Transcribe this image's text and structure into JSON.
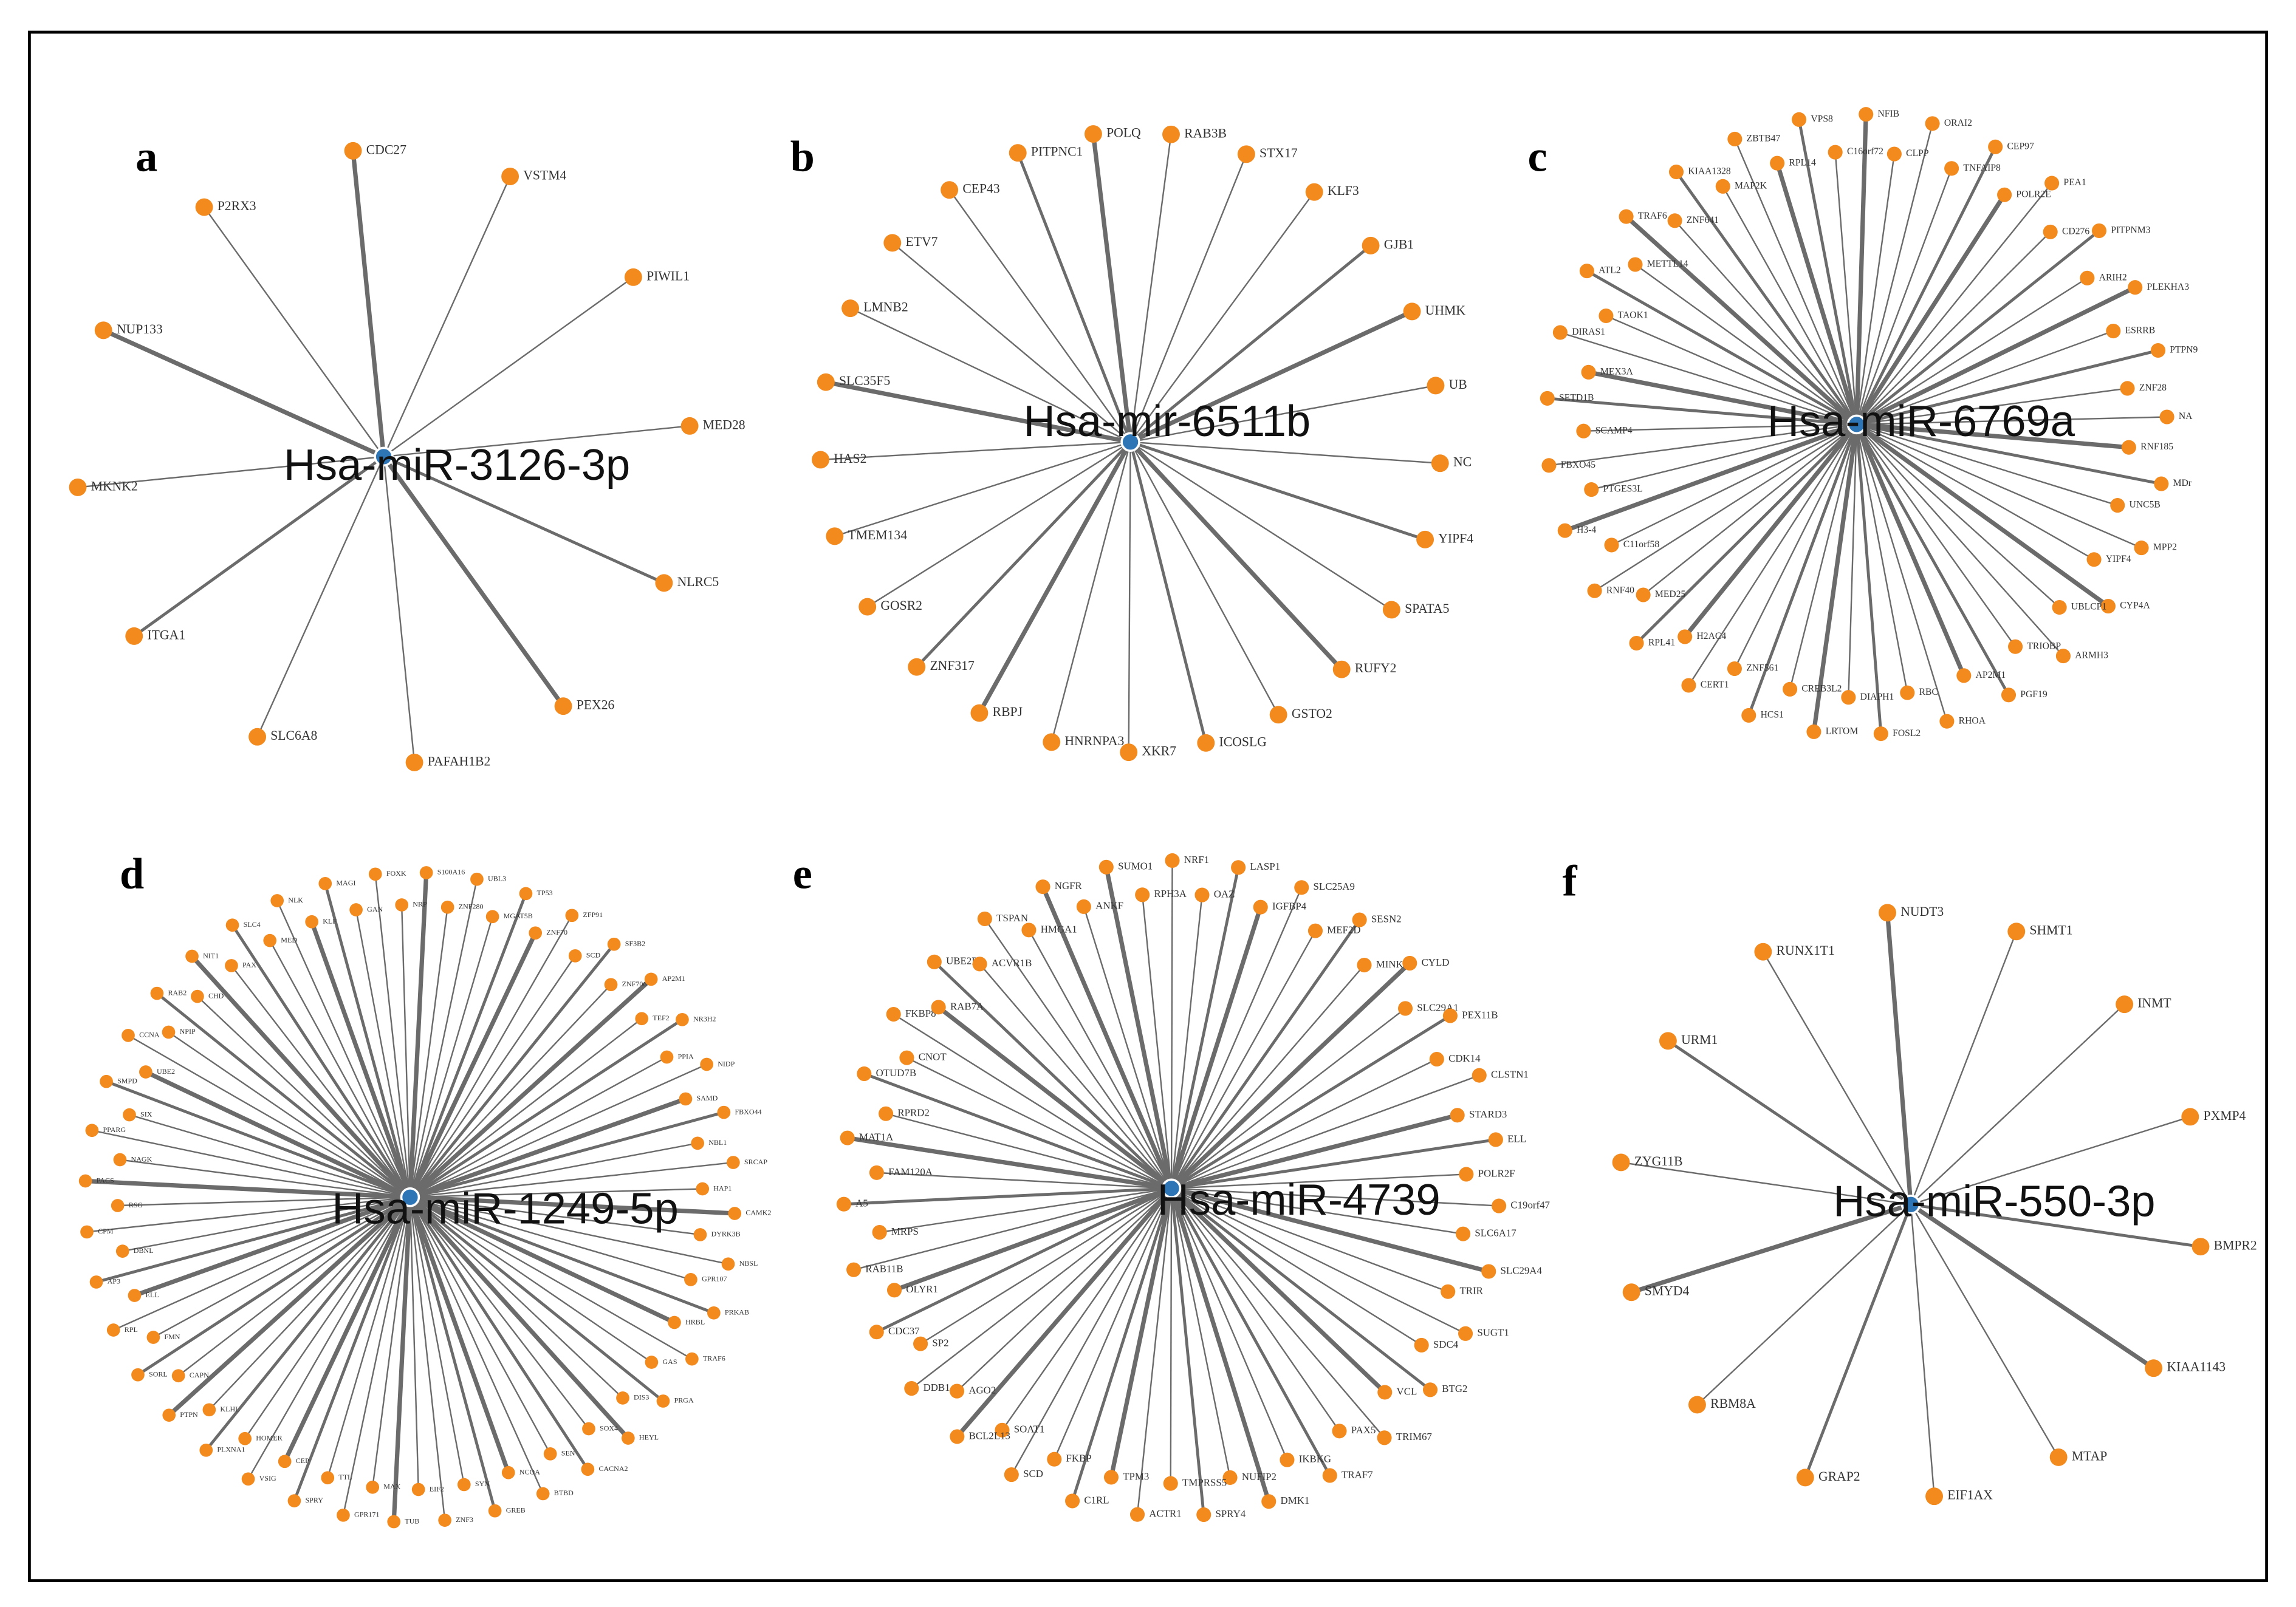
{
  "panels": [
    {
      "letter": "a",
      "center": "Hsa-miR-3126-3p",
      "nodes": [
        "CDC27",
        "VSTM4",
        "PIWIL1",
        "MED28",
        "NLRC5",
        "PEX26",
        "PAFAH1B2",
        "SLC6A8",
        "ITGA1",
        "MKNK2",
        "NUP133",
        "P2RX3"
      ]
    },
    {
      "letter": "b",
      "center": "Hsa-mir-6511b",
      "nodes": [
        "POLQ",
        "RAB3B",
        "STX17",
        "KLF3",
        "GJB1",
        "UHMK",
        "UB",
        "NC",
        "YIPF4",
        "SPATA5",
        "RUFY2",
        "GSTO2",
        "ICOSLG",
        "XKR7",
        "HNRNPA3",
        "RBPJ",
        "ZNF317",
        "GOSR2",
        "TMEM134",
        "HAS2",
        "SLC35F5",
        "LMNB2",
        "ETV7",
        "CEP43",
        "PITPNC1"
      ]
    },
    {
      "letter": "c",
      "center": "Hsa-miR-6769a",
      "nodes": [
        "NFIB",
        "CLPP",
        "ORAI2",
        "TNFAIP8",
        "CEP97",
        "POLR2E",
        "PEA1",
        "CD276",
        "PITPNM3",
        "ARIH2",
        "PLEKHA3",
        "ESRRB",
        "PTPN9",
        "ZNF28",
        "NA",
        "RNF185",
        "MDr",
        "UNC5B",
        "MPP2",
        "YIPF4",
        "CYP4A",
        "UBLCP1",
        "ARMH3",
        "TRIOBP",
        "PGF19",
        "AP2M1",
        "RHOA",
        "RBC",
        "FOSL2",
        "DIAPH1",
        "LRTOM",
        "CREB3L2",
        "HCS1",
        "ZNF561",
        "CERT1",
        "H2AC4",
        "RPL41",
        "MED25",
        "RNF40",
        "C11orf58",
        "H3-4",
        "PTGES3L",
        "FBXO45",
        "SCAMP4",
        "SETD1B",
        "MEX3A",
        "DIRAS1",
        "TAOK1",
        "ATL2",
        "METTL14",
        "TRAF6",
        "ZNF641",
        "KIAA1328",
        "MAP2K",
        "ZBTB47",
        "RPL14",
        "VPS8",
        "C16orf72"
      ]
    },
    {
      "letter": "d",
      "center": "Hsa-miR-1249-5p",
      "nodes": [
        "S100A16",
        "ZNF280",
        "UBL3",
        "MGAT5B",
        "TP53",
        "ZNF70",
        "ZFP91",
        "SCD",
        "SF3B2",
        "ZNF706",
        "AP2M1",
        "TEF2",
        "NR3H2",
        "PPIA",
        "NIDP",
        "SAMD",
        "FBXO44",
        "NBL1",
        "SRCAP",
        "HAP1",
        "CAMK2",
        "DYRK3B",
        "NBSL",
        "GPR107",
        "PRKAB",
        "HRBL",
        "TRAF6",
        "GAS",
        "PRGA",
        "DIS3",
        "HEYL",
        "SOX4",
        "CACNA2",
        "SEN",
        "BTBD",
        "NCOA",
        "GREB",
        "SYN",
        "ZNF3",
        "EIF2",
        "TUB",
        "MAX",
        "GPR171",
        "TTL",
        "SPRY",
        "CEP",
        "VSIG",
        "HOMER",
        "PLXNA1",
        "KLHL",
        "PTPN",
        "CAPN",
        "SORL",
        "FMN",
        "RPL",
        "ELL",
        "AP3",
        "DBNL",
        "CPM",
        "RSG",
        "PACS",
        "NAGK",
        "PPARG",
        "SIX",
        "SMPD",
        "UBE2",
        "CCNA",
        "NPIP",
        "RAB2",
        "CHD",
        "NIT1",
        "PAX",
        "SLC4",
        "MED",
        "NLK",
        "KLF",
        "MAGI",
        "GAN",
        "FOXK",
        "NRP"
      ]
    },
    {
      "letter": "e",
      "center": "Hsa-miR-4739",
      "nodes": [
        "SUMO1",
        "RPH3A",
        "NRF1",
        "OAZ",
        "LASP1",
        "IGFBP4",
        "SLC25A9",
        "MEF2D",
        "SESN2",
        "MINK1",
        "CYLD",
        "SLC29A1",
        "PEX11B",
        "CDK14",
        "CLSTN1",
        "STARD3",
        "ELL",
        "POLR2F",
        "C19orf47",
        "SLC6A17",
        "SLC29A4",
        "TRIR",
        "SUGT1",
        "SDC4",
        "BTG2",
        "VCL",
        "TRIM67",
        "PAX5",
        "TRAF7",
        "IKBKG",
        "DMK1",
        "NUFIP2",
        "SPRY4",
        "TMPRSS5",
        "ACTR1",
        "TPM3",
        "C1RL",
        "FKBP",
        "SCD",
        "SOAT1",
        "BCL2L13",
        "AGO2",
        "DDB1",
        "SP2",
        "CDC37",
        "OLYR1",
        "RAB11B",
        "MRPS",
        "A5",
        "FAM120A",
        "MAT1A",
        "RPRD2",
        "OTUD7B",
        "CNOT",
        "FKBP8",
        "RAB7A",
        "UBE2D3",
        "ACVR1B",
        "TSPAN",
        "HMGA1",
        "NGFR",
        "ANKF"
      ]
    },
    {
      "letter": "f",
      "center": "Hsa-miR-550-3p",
      "nodes": [
        "NUDT3",
        "SHMT1",
        "INMT",
        "PXMP4",
        "BMPR2",
        "KIAA1143",
        "MTAP",
        "EIF1AX",
        "GRAP2",
        "RBM8A",
        "SMYD4",
        "ZYG11B",
        "URM1",
        "RUNX1T1"
      ]
    }
  ]
}
